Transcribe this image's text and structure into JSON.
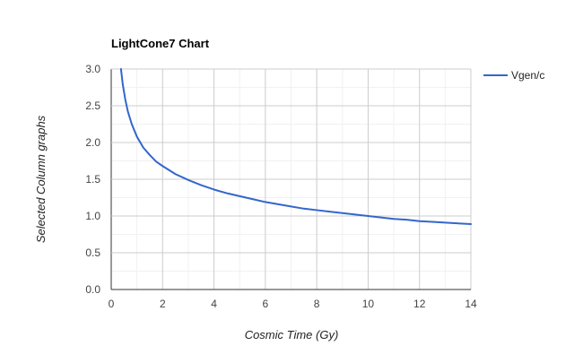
{
  "chart_data": {
    "type": "line",
    "title": "LightCone7 Chart",
    "xlabel": "Cosmic Time (Gy)",
    "ylabel": "Selected Column graphs",
    "xlim": [
      0,
      14
    ],
    "ylim": [
      0,
      3.0
    ],
    "x_ticks": [
      "0",
      "2",
      "4",
      "6",
      "8",
      "10",
      "12",
      "14"
    ],
    "y_ticks": [
      "0.0",
      "0.5",
      "1.0",
      "1.5",
      "2.0",
      "2.5",
      "3.0"
    ],
    "grid": true,
    "legend_position": "right",
    "series": [
      {
        "name": "Vgen/c",
        "color": "#3366cc",
        "x": [
          0.38,
          0.45,
          0.55,
          0.65,
          0.8,
          1.0,
          1.25,
          1.5,
          1.75,
          2.0,
          2.5,
          3.0,
          3.5,
          4.0,
          4.5,
          5.0,
          5.5,
          6.0,
          6.5,
          7.0,
          7.5,
          8.0,
          8.5,
          9.0,
          9.5,
          10.0,
          10.5,
          11.0,
          11.5,
          12.0,
          12.5,
          13.0,
          13.5,
          14.0
        ],
        "y": [
          3.0,
          2.79,
          2.58,
          2.42,
          2.25,
          2.08,
          1.93,
          1.83,
          1.74,
          1.68,
          1.57,
          1.49,
          1.42,
          1.36,
          1.31,
          1.27,
          1.23,
          1.19,
          1.16,
          1.13,
          1.1,
          1.08,
          1.06,
          1.04,
          1.02,
          1.0,
          0.98,
          0.96,
          0.95,
          0.93,
          0.92,
          0.91,
          0.9,
          0.89
        ]
      }
    ]
  }
}
